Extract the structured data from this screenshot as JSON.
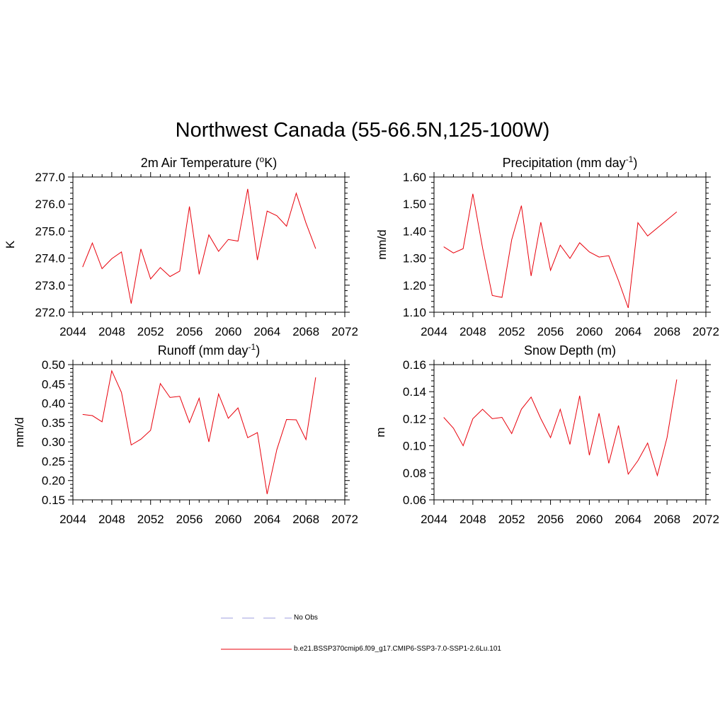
{
  "title": "Northwest Canada (55-66.5N,125-100W)",
  "colors": {
    "series": "#e8000b",
    "no_obs": "#9f9fdf"
  },
  "legend": {
    "items": [
      {
        "label": "No Obs",
        "style": "dashed",
        "color": "#9f9fdf"
      },
      {
        "label": "b.e21.BSSP370cmip6.f09_g17.CMIP6-SSP3-7.0-SSP1-2.6Lu.101",
        "style": "solid",
        "color": "#e8000b"
      }
    ]
  },
  "chart_data": [
    {
      "type": "line",
      "title": "2m Air Temperature (oK)",
      "title_parts": {
        "main": "2m Air Temperature (",
        "sup": "o",
        "tail": "K)"
      },
      "ylabel": "K",
      "xlim": [
        2044,
        2072
      ],
      "ylim": [
        272.0,
        277.0
      ],
      "xticks": [
        2044,
        2048,
        2052,
        2056,
        2060,
        2064,
        2068,
        2072
      ],
      "yticks": [
        272.0,
        273.0,
        274.0,
        275.0,
        276.0,
        277.0
      ],
      "ytick_labels": [
        "272.0",
        "273.0",
        "274.0",
        "275.0",
        "276.0",
        "277.0"
      ],
      "x": [
        2045,
        2046,
        2047,
        2048,
        2049,
        2050,
        2051,
        2052,
        2053,
        2054,
        2055,
        2056,
        2057,
        2058,
        2059,
        2060,
        2061,
        2062,
        2063,
        2064,
        2065,
        2066,
        2067,
        2068,
        2069
      ],
      "values": [
        273.67,
        274.56,
        273.61,
        273.98,
        274.23,
        272.32,
        274.34,
        273.23,
        273.65,
        273.32,
        273.52,
        275.91,
        273.4,
        274.86,
        274.25,
        274.69,
        274.63,
        276.56,
        273.93,
        275.74,
        275.57,
        275.18,
        276.4,
        275.3,
        274.35
      ]
    },
    {
      "type": "line",
      "title": "Precipitation (mm day-1)",
      "title_parts": {
        "main": "Precipitation (mm day",
        "sup": "-1",
        "tail": ")"
      },
      "ylabel": "mm/d",
      "xlim": [
        2044,
        2072
      ],
      "ylim": [
        1.1,
        1.6
      ],
      "xticks": [
        2044,
        2048,
        2052,
        2056,
        2060,
        2064,
        2068,
        2072
      ],
      "yticks": [
        1.1,
        1.2,
        1.3,
        1.4,
        1.5,
        1.6
      ],
      "ytick_labels": [
        "1.10",
        "1.20",
        "1.30",
        "1.40",
        "1.50",
        "1.60"
      ],
      "x": [
        2045,
        2046,
        2047,
        2048,
        2049,
        2050,
        2051,
        2052,
        2053,
        2054,
        2055,
        2056,
        2057,
        2058,
        2059,
        2060,
        2061,
        2062,
        2063,
        2064,
        2065,
        2066,
        2069
      ],
      "values": [
        1.342,
        1.319,
        1.335,
        1.538,
        1.338,
        1.162,
        1.155,
        1.368,
        1.494,
        1.234,
        1.433,
        1.255,
        1.348,
        1.299,
        1.357,
        1.323,
        1.304,
        1.309,
        1.217,
        1.116,
        1.431,
        1.382,
        1.471
      ]
    },
    {
      "type": "line",
      "title": "Runoff (mm day-1)",
      "title_parts": {
        "main": "Runoff (mm day",
        "sup": "-1",
        "tail": ")"
      },
      "ylabel": "mm/d",
      "xlim": [
        2044,
        2072
      ],
      "ylim": [
        0.15,
        0.5
      ],
      "xticks": [
        2044,
        2048,
        2052,
        2056,
        2060,
        2064,
        2068,
        2072
      ],
      "yticks": [
        0.15,
        0.2,
        0.25,
        0.3,
        0.35,
        0.4,
        0.45,
        0.5
      ],
      "ytick_labels": [
        "0.15",
        "0.20",
        "0.25",
        "0.30",
        "0.35",
        "0.40",
        "0.45",
        "0.50"
      ],
      "x": [
        2045,
        2046,
        2047,
        2048,
        2049,
        2050,
        2051,
        2052,
        2053,
        2054,
        2055,
        2056,
        2057,
        2058,
        2059,
        2060,
        2061,
        2062,
        2063,
        2064,
        2065,
        2066,
        2067,
        2068,
        2069
      ],
      "values": [
        0.371,
        0.368,
        0.352,
        0.484,
        0.428,
        0.292,
        0.307,
        0.33,
        0.451,
        0.415,
        0.418,
        0.35,
        0.413,
        0.3,
        0.424,
        0.361,
        0.388,
        0.311,
        0.324,
        0.165,
        0.28,
        0.358,
        0.357,
        0.306,
        0.467
      ]
    },
    {
      "type": "line",
      "title": "Snow Depth (m)",
      "title_parts": {
        "main": "Snow Depth (m)",
        "sup": "",
        "tail": ""
      },
      "ylabel": "m",
      "xlim": [
        2044,
        2072
      ],
      "ylim": [
        0.06,
        0.16
      ],
      "xticks": [
        2044,
        2048,
        2052,
        2056,
        2060,
        2064,
        2068,
        2072
      ],
      "yticks": [
        0.06,
        0.08,
        0.1,
        0.12,
        0.14,
        0.16
      ],
      "ytick_labels": [
        "0.06",
        "0.08",
        "0.10",
        "0.12",
        "0.14",
        "0.16"
      ],
      "x": [
        2045,
        2046,
        2047,
        2048,
        2049,
        2050,
        2051,
        2052,
        2053,
        2054,
        2055,
        2056,
        2057,
        2058,
        2059,
        2060,
        2061,
        2062,
        2063,
        2064,
        2065,
        2066,
        2067,
        2068,
        2069
      ],
      "values": [
        0.121,
        0.113,
        0.1,
        0.12,
        0.127,
        0.12,
        0.121,
        0.109,
        0.127,
        0.136,
        0.12,
        0.106,
        0.127,
        0.101,
        0.137,
        0.093,
        0.124,
        0.087,
        0.115,
        0.079,
        0.089,
        0.102,
        0.078,
        0.106,
        0.149
      ]
    }
  ]
}
